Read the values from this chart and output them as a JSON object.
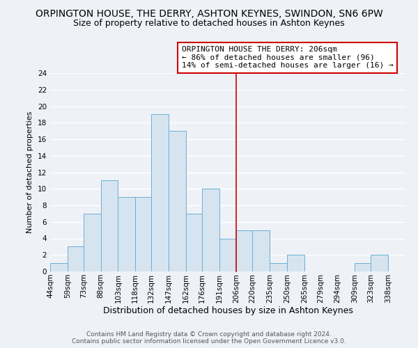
{
  "title": "ORPINGTON HOUSE, THE DERRY, ASHTON KEYNES, SWINDON, SN6 6PW",
  "subtitle": "Size of property relative to detached houses in Ashton Keynes",
  "xlabel": "Distribution of detached houses by size in Ashton Keynes",
  "ylabel": "Number of detached properties",
  "bin_labels": [
    "44sqm",
    "59sqm",
    "73sqm",
    "88sqm",
    "103sqm",
    "118sqm",
    "132sqm",
    "147sqm",
    "162sqm",
    "176sqm",
    "191sqm",
    "206sqm",
    "220sqm",
    "235sqm",
    "250sqm",
    "265sqm",
    "279sqm",
    "294sqm",
    "309sqm",
    "323sqm",
    "338sqm"
  ],
  "bin_edges": [
    44,
    59,
    73,
    88,
    103,
    118,
    132,
    147,
    162,
    176,
    191,
    206,
    220,
    235,
    250,
    265,
    279,
    294,
    309,
    323,
    338,
    353
  ],
  "counts": [
    1,
    3,
    7,
    11,
    9,
    9,
    19,
    17,
    7,
    10,
    4,
    5,
    5,
    1,
    2,
    0,
    0,
    0,
    1,
    2,
    0
  ],
  "bar_fill_color": "#d6e4f0",
  "bar_edge_color": "#6aafd6",
  "reference_line_x": 206,
  "reference_line_color": "#cc0000",
  "annotation_title": "ORPINGTON HOUSE THE DERRY: 206sqm",
  "annotation_line1": "← 86% of detached houses are smaller (96)",
  "annotation_line2": "14% of semi-detached houses are larger (16) →",
  "annotation_box_color": "#ffffff",
  "annotation_box_edge": "#cc0000",
  "ylim": [
    0,
    24
  ],
  "yticks": [
    0,
    2,
    4,
    6,
    8,
    10,
    12,
    14,
    16,
    18,
    20,
    22,
    24
  ],
  "footer_line1": "Contains HM Land Registry data © Crown copyright and database right 2024.",
  "footer_line2": "Contains public sector information licensed under the Open Government Licence v3.0.",
  "background_color": "#eef2f7",
  "grid_color": "#ffffff",
  "title_fontsize": 10,
  "subtitle_fontsize": 9,
  "xlabel_fontsize": 9,
  "ylabel_fontsize": 8,
  "tick_fontsize": 7.5,
  "footer_fontsize": 6.5,
  "annot_fontsize": 8
}
